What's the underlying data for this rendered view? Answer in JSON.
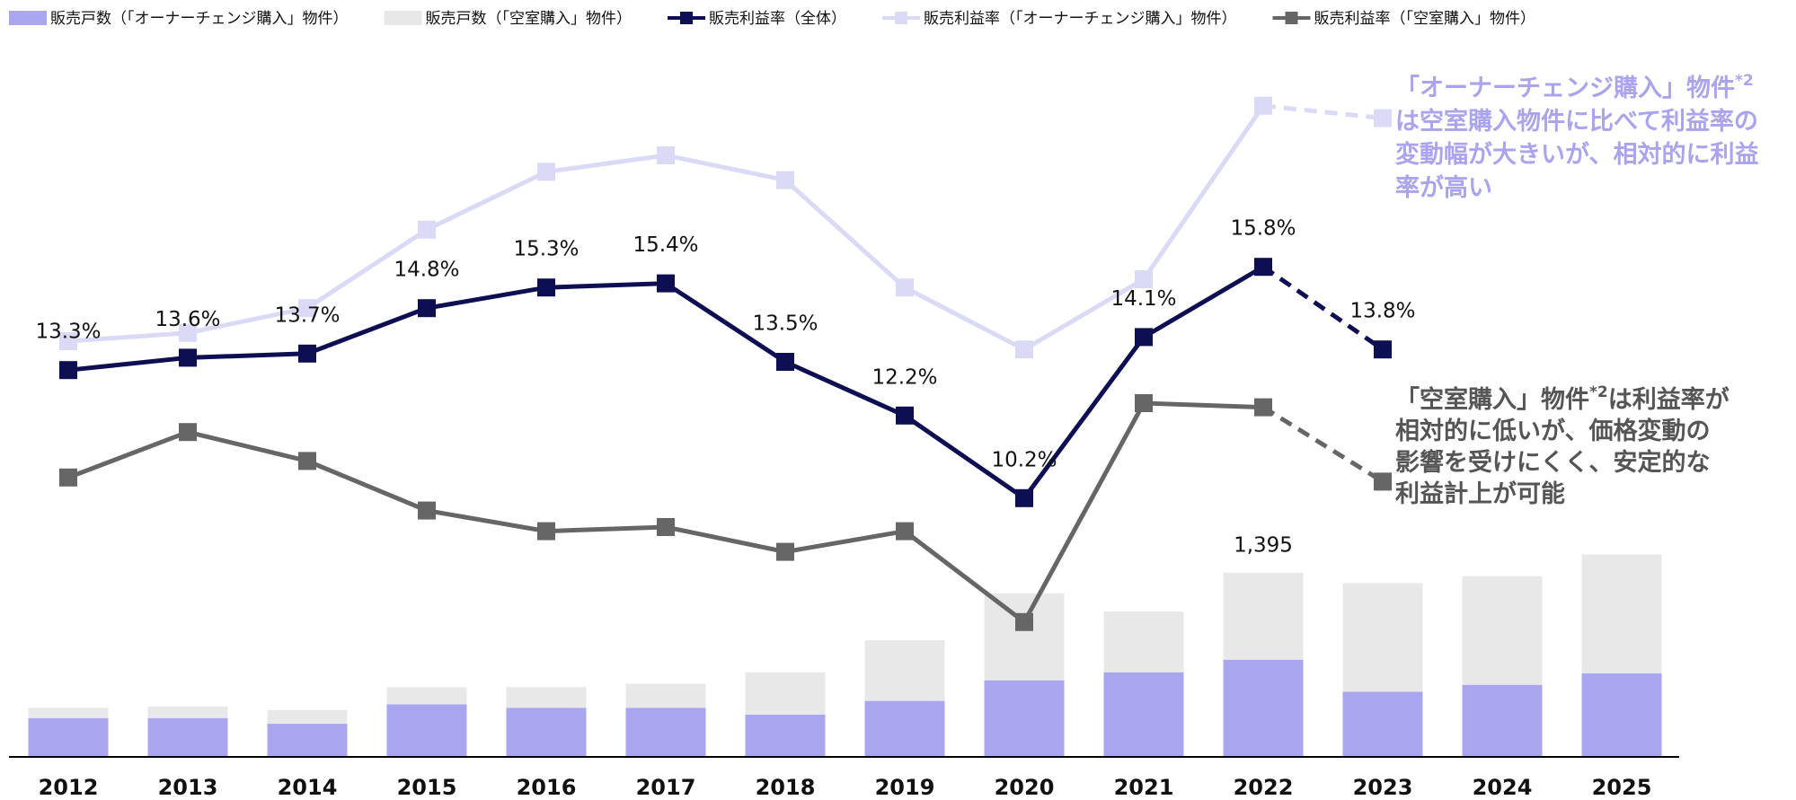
{
  "chart_data": {
    "type": "bar-line",
    "categories": [
      "2012",
      "2013",
      "2014",
      "2015",
      "2016",
      "2017",
      "2018",
      "2019",
      "2020",
      "2021",
      "2022",
      "2023",
      "2024",
      "2025"
    ],
    "series": [
      {
        "name": "販売戸数（「オーナーチェンジ購入」物件）",
        "type": "bar",
        "color": "#aaa5ef",
        "values": [
          294,
          294,
          251,
          398,
          372,
          372,
          320,
          424,
          580,
          641,
          736,
          494,
          546,
          632
        ]
      },
      {
        "name": "販売戸数（「空室購入」物件）",
        "type": "bar",
        "color": "#e8e8e8",
        "values": [
          78,
          87,
          104,
          130,
          156,
          182,
          321,
          459,
          658,
          459,
          659,
          822,
          822,
          901
        ]
      },
      {
        "name": "販売利益率（全体）",
        "type": "line",
        "color": "#0e0e52",
        "values": [
          13.3,
          13.6,
          13.7,
          14.8,
          15.3,
          15.4,
          13.5,
          12.2,
          10.2,
          14.1,
          15.8,
          13.8,
          null,
          null
        ],
        "value_labels": [
          "13.3%",
          "13.6%",
          "13.7%",
          "14.8%",
          "15.3%",
          "15.4%",
          "13.5%",
          "12.2%",
          "10.2%",
          "14.1%",
          "15.8%",
          "13.8%",
          null,
          null
        ]
      },
      {
        "name": "販売利益率（「オーナーチェンジ購入」物件）",
        "type": "line",
        "color": "#dadaf7",
        "values": [
          14.0,
          14.2,
          14.8,
          16.7,
          18.1,
          18.5,
          17.9,
          15.3,
          13.8,
          15.5,
          19.7,
          19.4,
          null,
          null
        ]
      },
      {
        "name": "販売利益率（「空室購入」物件）",
        "type": "line",
        "color": "#666666",
        "values": [
          10.7,
          11.8,
          11.1,
          9.9,
          9.4,
          9.5,
          8.9,
          9.4,
          7.2,
          12.5,
          12.4,
          10.6,
          null,
          null
        ]
      }
    ],
    "dashed_from": "2022",
    "total_labels": [
      {
        "category": "2022",
        "text": "1,395"
      }
    ],
    "annotations": [
      {
        "color": "#a9a4ec",
        "lines": [
          [
            {
              "text": "「オーナーチェンジ購入」物件"
            },
            {
              "text": "*2",
              "sup": true
            }
          ],
          [
            {
              "text": "は空室購入物件に比べて利益率の"
            }
          ],
          [
            {
              "text": "変動幅が大きいが、相対的に利益"
            }
          ],
          [
            {
              "text": "率が高い"
            }
          ]
        ]
      },
      {
        "color": "#555555",
        "lines": [
          [
            {
              "text": "「空室購入」物件"
            },
            {
              "text": "*2",
              "sup": true
            },
            {
              "text": "は利益率が"
            }
          ],
          [
            {
              "text": "相対的に低いが、価格変動の"
            }
          ],
          [
            {
              "text": "影響を受けにくく、安定的な"
            }
          ],
          [
            {
              "text": "利益計上が可能"
            }
          ]
        ]
      }
    ]
  }
}
